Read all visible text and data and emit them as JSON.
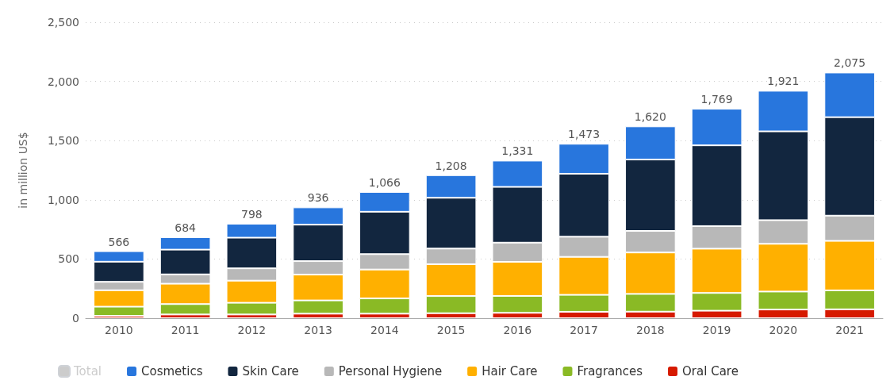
{
  "chart_data": {
    "type": "bar",
    "stacked": true,
    "ylabel": "in million US$",
    "categories": [
      "2010",
      "2011",
      "2012",
      "2013",
      "2014",
      "2015",
      "2016",
      "2017",
      "2018",
      "2019",
      "2020",
      "2021"
    ],
    "series": [
      {
        "name": "Oral Care",
        "color": "#d61a00",
        "values": [
          20,
          31,
          31,
          38,
          38,
          42,
          45,
          54,
          55,
          63,
          73,
          75
        ]
      },
      {
        "name": "Fragrances",
        "color": "#8aba25",
        "values": [
          77,
          88,
          99,
          112,
          129,
          145,
          143,
          143,
          150,
          150,
          152,
          160
        ]
      },
      {
        "name": "Hair Care",
        "color": "#ffb000",
        "values": [
          139,
          172,
          187,
          218,
          244,
          269,
          288,
          321,
          350,
          374,
          403,
          418
        ]
      },
      {
        "name": "Personal Hygiene",
        "color": "#b8b8b8",
        "values": [
          71,
          79,
          104,
          114,
          130,
          132,
          162,
          170,
          182,
          191,
          200,
          213
        ]
      },
      {
        "name": "Skin Care",
        "color": "#12263f",
        "values": [
          170,
          209,
          259,
          308,
          358,
          429,
          471,
          532,
          603,
          682,
          750,
          832
        ]
      },
      {
        "name": "Cosmetics",
        "color": "#2876dd",
        "values": [
          89,
          105,
          118,
          146,
          167,
          191,
          222,
          253,
          280,
          309,
          343,
          377
        ]
      },
      {
        "name": "Total",
        "color": "#cccccc",
        "values": [
          null,
          null,
          null,
          null,
          null,
          null,
          null,
          null,
          null,
          null,
          null,
          null
        ]
      }
    ],
    "totals": [
      "566",
      "684",
      "798",
      "936",
      "1,066",
      "1,208",
      "1,331",
      "1,473",
      "1,620",
      "1,769",
      "1,921",
      "2,075"
    ],
    "ylim": [
      0,
      2500
    ],
    "yticks": [
      0,
      500,
      {
        "value": 1000,
        "label": "1,000"
      },
      {
        "value": 1500,
        "label": "1,500"
      },
      {
        "value": 2000,
        "label": "2,000"
      },
      {
        "value": 2500,
        "label": "2,500"
      }
    ],
    "grid": "y",
    "legend": "bottom"
  }
}
